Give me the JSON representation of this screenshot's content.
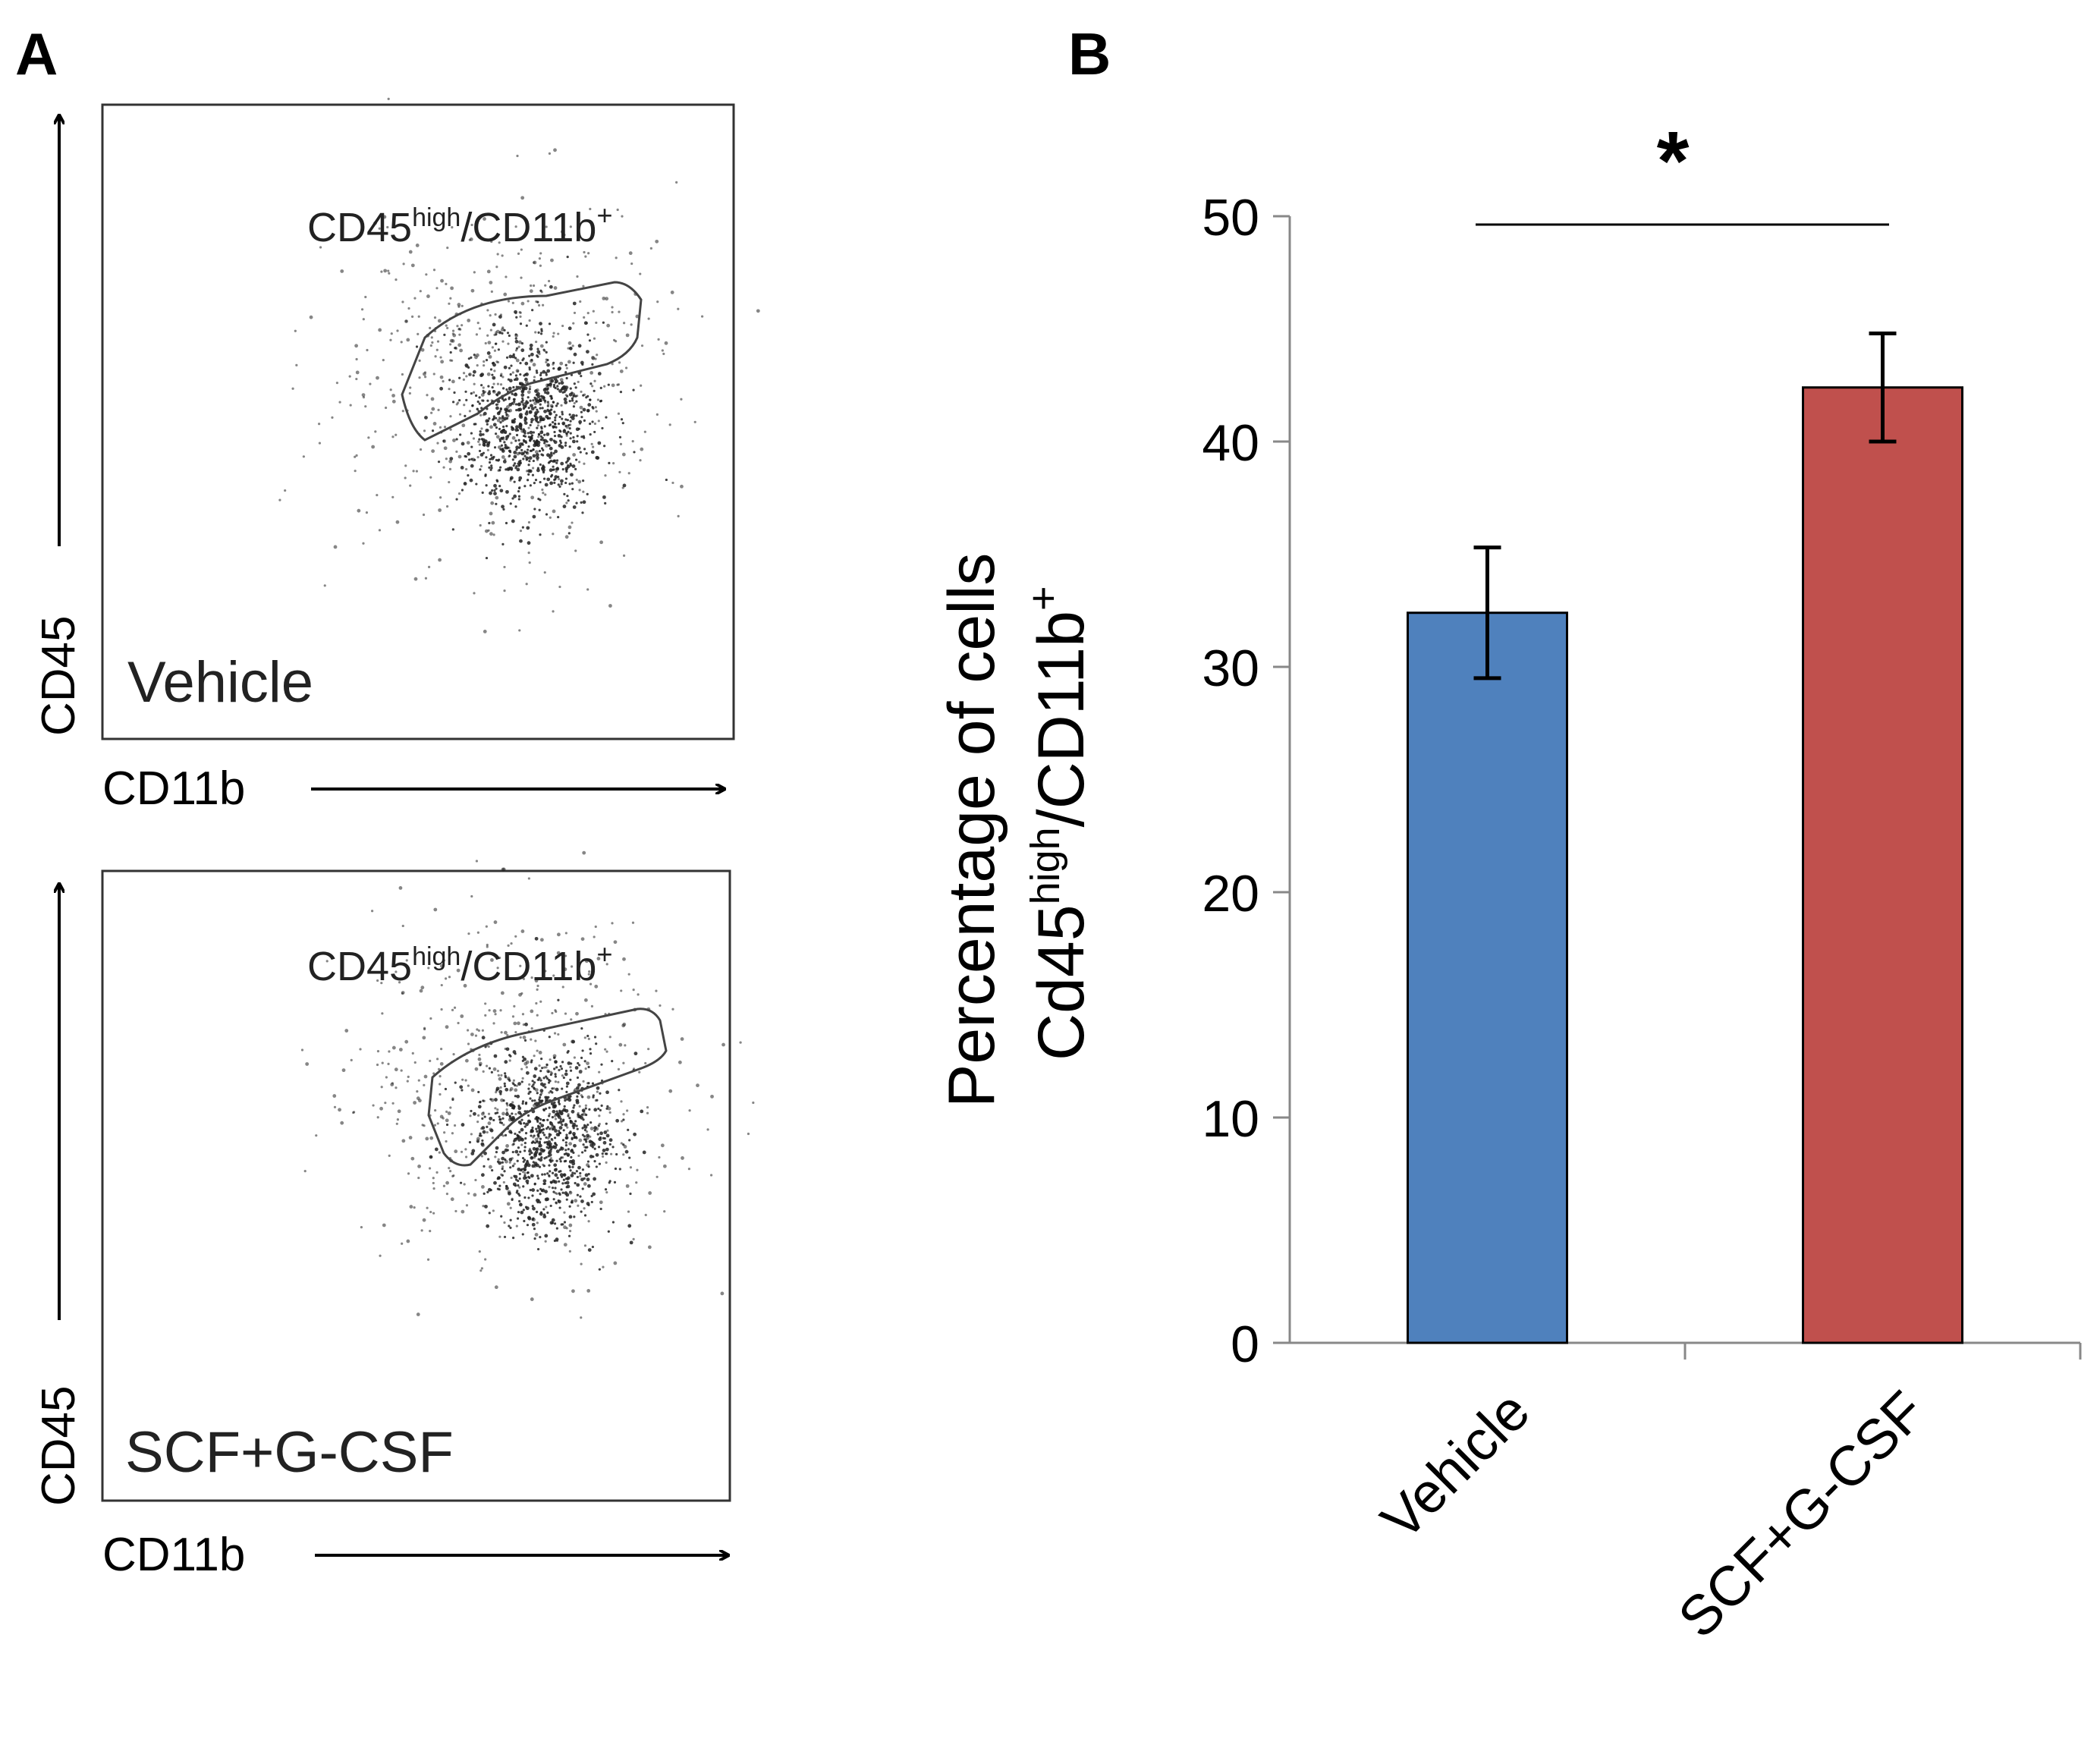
{
  "panels": {
    "a_label": "A",
    "b_label": "B"
  },
  "flow_plots": [
    {
      "sample": "Vehicle",
      "gate_label": "CD45",
      "gate_label_sup1": "high",
      "gate_label_mid": "/CD11b",
      "gate_label_sup2": "+",
      "y_axis": "CD45",
      "x_axis": "CD11b"
    },
    {
      "sample": "SCF+G-CSF",
      "gate_label": "CD45",
      "gate_label_sup1": "high",
      "gate_label_mid": "/CD11b",
      "gate_label_sup2": "+",
      "y_axis": "CD45",
      "x_axis": "CD11b"
    }
  ],
  "chart_data": {
    "type": "bar",
    "title": "",
    "categories": [
      "Vehicle",
      "SCF+G-CSF"
    ],
    "values": [
      32.4,
      42.4
    ],
    "error": [
      2.9,
      2.4
    ],
    "colors": [
      "#4f81bd",
      "#c0504d"
    ],
    "ylim": [
      0,
      50
    ],
    "yticks": [
      0,
      10,
      20,
      30,
      40,
      50
    ],
    "xlabel": "",
    "ylabel_line1": "Percentage of cells",
    "ylabel_line2_a": "Cd45",
    "ylabel_line2_sup1": "high",
    "ylabel_line2_b": "/CD11b",
    "ylabel_line2_sup2": "+",
    "significance": "*",
    "grid": false,
    "legend": "none"
  }
}
